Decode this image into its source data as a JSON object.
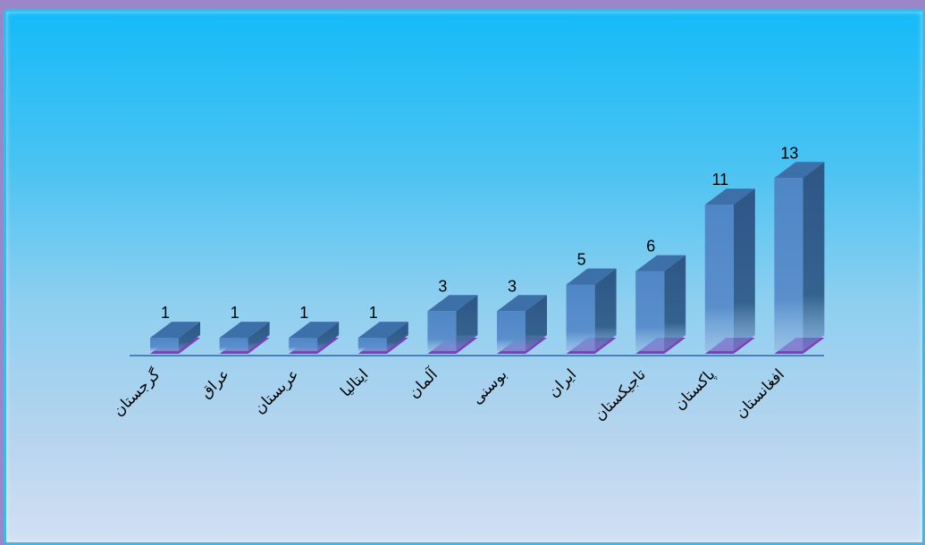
{
  "chart_data": {
    "type": "bar",
    "categories": [
      "گرجستان",
      "عراق",
      "عربستان",
      "ایتالیا",
      "آلمان",
      "بوسنی",
      "ایران",
      "تاجیکستان",
      "پاکستان",
      "افغانستان"
    ],
    "values": [
      1,
      1,
      1,
      1,
      3,
      3,
      5,
      6,
      11,
      13
    ],
    "title": "",
    "xlabel": "",
    "ylabel": "",
    "ylim": [
      0,
      13
    ],
    "grid": false,
    "legend": "none",
    "colors": {
      "bar_front": "#4f86c6",
      "bar_side": "#2f5b8f",
      "bar_top": "#3d6fa8",
      "floor": "#7d3fbf",
      "axis": "#4a7fc0"
    }
  }
}
